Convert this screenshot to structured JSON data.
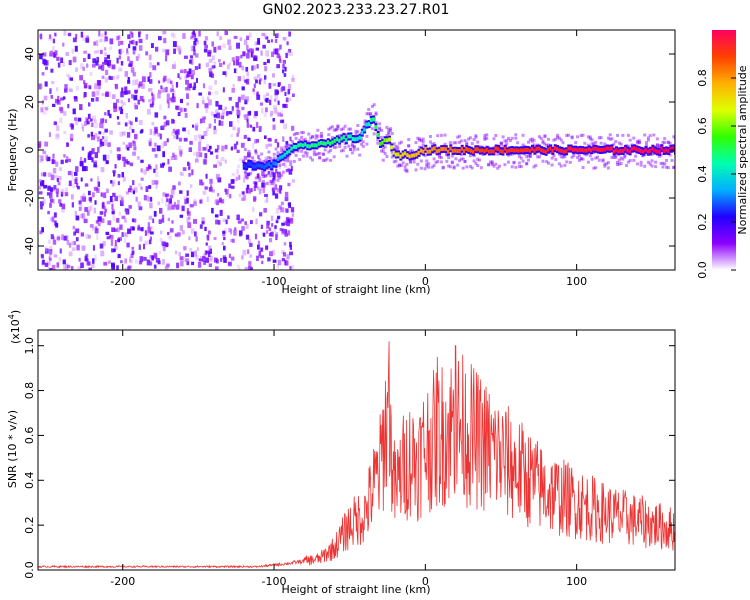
{
  "title": "GN02.2023.233.23.27.R01",
  "chart_data": [
    {
      "type": "heatmap",
      "xlabel": "Height of straight line (km)",
      "ylabel": "Frequency (Hz)",
      "xlim": [
        -256,
        165
      ],
      "ylim": [
        -50,
        50
      ],
      "xticks": [
        -200,
        -100,
        0,
        100
      ],
      "yticks": [
        -40,
        -20,
        0,
        20,
        40
      ],
      "grid": false,
      "colorbar": {
        "label": "Normalized spectral amplitude",
        "range": [
          0,
          1
        ],
        "ticks": [
          "0.0",
          "0.2",
          "0.4",
          "0.6",
          "0.8"
        ],
        "colormap": [
          "#ffffff",
          "#8e00ff",
          "#2000ff",
          "#00b0ff",
          "#00ffb0",
          "#30ff00",
          "#e0ff00",
          "#ffb000",
          "#ff4000",
          "#ff0060"
        ]
      },
      "noise_region": {
        "x": [
          -256,
          -88
        ],
        "amplitude_approx": 0.1
      },
      "ridge": [
        {
          "x": -120,
          "y": -6
        },
        {
          "x": -110,
          "y": -7
        },
        {
          "x": -100,
          "y": -6
        },
        {
          "x": -90,
          "y": 0
        },
        {
          "x": -80,
          "y": 2
        },
        {
          "x": -70,
          "y": 2
        },
        {
          "x": -60,
          "y": 4
        },
        {
          "x": -50,
          "y": 5
        },
        {
          "x": -45,
          "y": 4
        },
        {
          "x": -35,
          "y": 14
        },
        {
          "x": -30,
          "y": 2
        },
        {
          "x": -25,
          "y": 5
        },
        {
          "x": -20,
          "y": -2
        },
        {
          "x": -10,
          "y": -2
        },
        {
          "x": 0,
          "y": 0
        },
        {
          "x": 20,
          "y": 0
        },
        {
          "x": 50,
          "y": 0
        },
        {
          "x": 80,
          "y": 0
        },
        {
          "x": 100,
          "y": 0
        },
        {
          "x": 130,
          "y": 0
        },
        {
          "x": 165,
          "y": 0
        }
      ],
      "ridge_amplitude": [
        {
          "x": -120,
          "v": 0.25
        },
        {
          "x": -100,
          "v": 0.3
        },
        {
          "x": -90,
          "v": 0.45
        },
        {
          "x": -60,
          "v": 0.5
        },
        {
          "x": -40,
          "v": 0.4
        },
        {
          "x": -20,
          "v": 0.7
        },
        {
          "x": 0,
          "v": 0.8
        },
        {
          "x": 40,
          "v": 0.9
        },
        {
          "x": 100,
          "v": 0.95
        },
        {
          "x": 165,
          "v": 1.0
        }
      ]
    },
    {
      "type": "line",
      "xlabel": "Height of straight line (km)",
      "ylabel": "SNR (10 * v/v)",
      "y_multiplier": "(x10",
      "y_multiplier_exponent": "4",
      "y_multiplier_close": ")",
      "xlim": [
        -256,
        165
      ],
      "ylim": [
        0,
        1.07
      ],
      "xticks": [
        -200,
        -100,
        0,
        100
      ],
      "yticks": [
        "0.0",
        "0.2",
        "0.4",
        "0.6",
        "0.8",
        "1.0"
      ],
      "grid": false,
      "series": [
        {
          "color": "#ee3333",
          "x": [
            -256,
            -200,
            -150,
            -110,
            -90,
            -70,
            -60,
            -50,
            -40,
            -35,
            -30,
            -25,
            -20,
            -15,
            -10,
            -5,
            0,
            10,
            20,
            30,
            40,
            60,
            80,
            100,
            120,
            140,
            165
          ],
          "values": [
            0.015,
            0.015,
            0.015,
            0.015,
            0.03,
            0.05,
            0.1,
            0.2,
            0.25,
            0.35,
            0.45,
            0.7,
            0.35,
            0.45,
            0.5,
            0.48,
            0.55,
            0.6,
            0.65,
            0.6,
            0.55,
            0.45,
            0.35,
            0.3,
            0.25,
            0.22,
            0.18
          ],
          "spikes": [
            {
              "x": -24,
              "y": 1.02
            },
            {
              "x": 20,
              "y": 1.0
            },
            {
              "x": 8,
              "y": 0.95
            }
          ]
        }
      ]
    }
  ]
}
